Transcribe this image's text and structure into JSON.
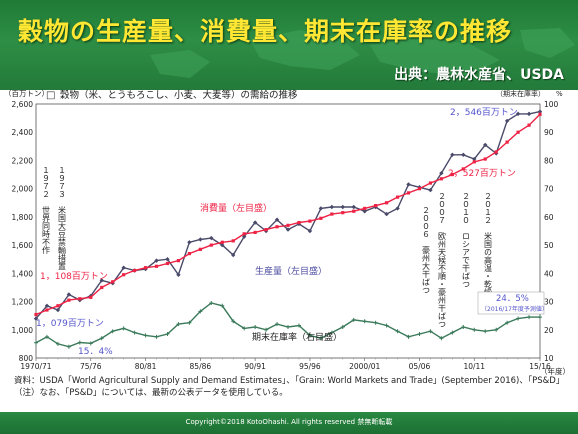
{
  "slide": {
    "title": "穀物の生産量、消費量、期末在庫率の推移",
    "source": "出典：農林水産省、USDA",
    "notes": [
      "資料：USDA「World Agricultural Supply and Demand Estimates」、「Grain: World Markets and Trade」(September 2016)、「PS&D」",
      "（注）なお、「PS&D」については、最新の公表データを使用している。"
    ],
    "copyright": "Copyright©2018 KotoOhashi.  All rights reserved 禁無断転載"
  },
  "colors": {
    "banner": "#2e8e45",
    "title": "#ffe733",
    "production": "#4a4a6a",
    "consumption": "#ee2244",
    "stock_ratio": "#3a7a5a",
    "callout_blue": "#5555cc",
    "callout_red": "#ee2244"
  },
  "chart_data": {
    "type": "line",
    "title": "穀物（米、とうもろこし、小麦、大麦等）の需給の推移",
    "legend_marker": "□",
    "y_left_unit": "（百万トン）",
    "y_right_unit_label": "（期末在庫率）",
    "y_right_unit": "%",
    "x_unit": "（年度）",
    "ylim_left": [
      800,
      2600
    ],
    "ylim_right": [
      10,
      100
    ],
    "y_left_ticks": [
      "800",
      "1,000",
      "1,200",
      "1,400",
      "1,600",
      "1,800",
      "2,000",
      "2,200",
      "2,400",
      "2,600"
    ],
    "y_right_ticks": [
      "10",
      "20",
      "30",
      "40",
      "50",
      "60",
      "70",
      "80",
      "90",
      "100"
    ],
    "x_ticks": [
      {
        "i": 0,
        "label": "1970/71"
      },
      {
        "i": 5,
        "label": "75/76"
      },
      {
        "i": 10,
        "label": "80/81"
      },
      {
        "i": 15,
        "label": "85/86"
      },
      {
        "i": 20,
        "label": "90/91"
      },
      {
        "i": 25,
        "label": "95/96"
      },
      {
        "i": 30,
        "label": "2000/01"
      },
      {
        "i": 35,
        "label": "05/06"
      },
      {
        "i": 40,
        "label": "10/11"
      },
      {
        "i": 46,
        "label": "15/16"
      }
    ],
    "series": [
      {
        "name": "生産量（左目盛）",
        "axis": "left",
        "values": [
          1079,
          1170,
          1140,
          1250,
          1210,
          1240,
          1350,
          1330,
          1440,
          1420,
          1430,
          1490,
          1500,
          1390,
          1620,
          1640,
          1650,
          1600,
          1530,
          1660,
          1760,
          1700,
          1780,
          1710,
          1750,
          1700,
          1860,
          1870,
          1870,
          1870,
          1840,
          1870,
          1820,
          1860,
          2030,
          2010,
          1990,
          2110,
          2240,
          2240,
          2210,
          2310,
          2250,
          2480,
          2530,
          2530,
          2546
        ]
      },
      {
        "name": "消費量（左目盛）",
        "axis": "left",
        "values": [
          1108,
          1140,
          1170,
          1210,
          1220,
          1230,
          1300,
          1340,
          1390,
          1420,
          1440,
          1450,
          1470,
          1490,
          1540,
          1570,
          1600,
          1620,
          1630,
          1680,
          1690,
          1710,
          1730,
          1740,
          1760,
          1770,
          1790,
          1820,
          1830,
          1840,
          1860,
          1880,
          1900,
          1940,
          1970,
          2000,
          2040,
          2070,
          2100,
          2140,
          2190,
          2210,
          2260,
          2330,
          2400,
          2450,
          2527
        ]
      },
      {
        "name": "期末在庫率（右目盛）",
        "axis": "right",
        "values": [
          15.4,
          17.5,
          15.0,
          14.0,
          15.5,
          15.2,
          17.0,
          19.5,
          20.5,
          19.0,
          18.0,
          17.5,
          18.5,
          22.0,
          22.5,
          26.5,
          29.5,
          28.5,
          23.0,
          20.5,
          21.0,
          20.0,
          22.0,
          21.0,
          21.5,
          18.0,
          17.0,
          19.0,
          21.0,
          23.5,
          23.0,
          22.5,
          21.5,
          19.5,
          17.5,
          18.5,
          19.5,
          17.0,
          19.0,
          21.0,
          20.0,
          19.5,
          20.0,
          22.5,
          24.0,
          24.5,
          24.5
        ]
      }
    ],
    "annotations": {
      "callout_1972": "１９７２　世界同時不作",
      "callout_1973": "１９７３　米国大豆禁輸措置",
      "callout_2006": "２００６　豪州大干ばつ",
      "callout_2007": "２００７　欧州天候不順・豪州干ばつ",
      "callout_2010": "２０１０　ロシアで干ばつ",
      "callout_2012": "２０１２　米国の高温・乾燥",
      "label_consumption": "消費量（左目盛）",
      "label_production": "生産量（左目盛）",
      "label_stock": "期末在庫率（右目盛）",
      "start_consumption": "1，108百万トン",
      "start_production": "1，079百万トン",
      "start_stock": "15．4%",
      "end_production": "2，546百万トン",
      "end_consumption": "2，527百万トン",
      "end_stock": "24．5%",
      "end_stock_note": "（2016/17年度予測値）"
    }
  }
}
